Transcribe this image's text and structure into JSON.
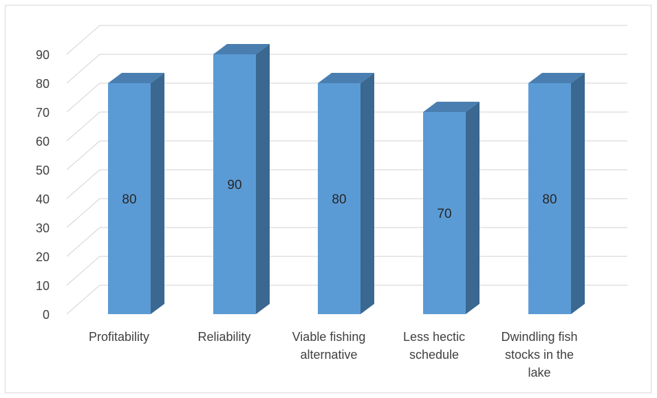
{
  "chart_data": {
    "type": "bar",
    "style": "3d-column",
    "categories": [
      [
        "Profitability"
      ],
      [
        "Reliability"
      ],
      [
        "Viable fishing",
        "alternative"
      ],
      [
        "Less hectic",
        "schedule"
      ],
      [
        "Dwindling fish",
        "stocks in the",
        "lake"
      ]
    ],
    "values": [
      80,
      90,
      80,
      70,
      80
    ],
    "data_labels": [
      "80",
      "90",
      "80",
      "70",
      "80"
    ],
    "ylim": [
      0,
      90
    ],
    "yticks": [
      0,
      10,
      20,
      30,
      40,
      50,
      60,
      70,
      80,
      90
    ],
    "grid": true,
    "legend": "none",
    "colors": {
      "bar_front": "#5b9bd5",
      "bar_side": "#3a6890",
      "bar_top": "#4a7eb0",
      "gridline": "#d9d9d9",
      "axis_text": "#404040"
    }
  }
}
